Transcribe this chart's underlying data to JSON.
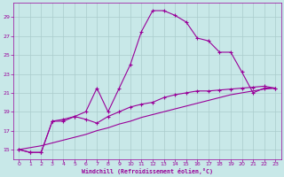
{
  "xlabel": "Windchill (Refroidissement éolien,°C)",
  "background_color": "#c8e8e8",
  "grid_color": "#aacccc",
  "line_color": "#990099",
  "xlim": [
    -0.5,
    23.5
  ],
  "ylim": [
    14.0,
    30.5
  ],
  "yticks": [
    15,
    17,
    19,
    21,
    23,
    25,
    27,
    29
  ],
  "xticks": [
    0,
    1,
    2,
    3,
    4,
    5,
    6,
    7,
    8,
    9,
    10,
    11,
    12,
    13,
    14,
    15,
    16,
    17,
    18,
    19,
    20,
    21,
    22,
    23
  ],
  "series1_x": [
    0,
    1,
    2,
    3,
    4,
    5,
    6,
    7,
    8,
    9,
    10,
    11,
    12,
    13,
    14,
    15,
    16,
    17,
    18,
    19,
    20,
    21,
    22,
    23
  ],
  "series1_y": [
    15.0,
    14.7,
    14.7,
    18.0,
    18.0,
    18.5,
    19.0,
    21.5,
    19.0,
    21.5,
    24.0,
    27.5,
    29.7,
    29.7,
    29.2,
    28.5,
    26.8,
    26.5,
    25.3,
    25.3,
    23.2,
    21.0,
    21.5,
    21.5
  ],
  "series2_x": [
    0,
    1,
    2,
    3,
    4,
    5,
    6,
    7,
    8,
    9,
    10,
    11,
    12,
    13,
    14,
    15,
    16,
    17,
    18,
    19,
    20,
    21,
    22,
    23
  ],
  "series2_y": [
    15.0,
    14.7,
    14.7,
    18.0,
    18.2,
    18.5,
    18.2,
    17.8,
    18.5,
    19.0,
    19.5,
    19.8,
    20.0,
    20.5,
    20.8,
    21.0,
    21.2,
    21.2,
    21.3,
    21.4,
    21.5,
    21.6,
    21.7,
    21.5
  ],
  "series3_x": [
    0,
    1,
    2,
    3,
    4,
    5,
    6,
    7,
    8,
    9,
    10,
    11,
    12,
    13,
    14,
    15,
    16,
    17,
    18,
    19,
    20,
    21,
    22,
    23
  ],
  "series3_y": [
    15.0,
    15.2,
    15.4,
    15.7,
    16.0,
    16.3,
    16.6,
    17.0,
    17.3,
    17.7,
    18.0,
    18.4,
    18.7,
    19.0,
    19.3,
    19.6,
    19.9,
    20.2,
    20.5,
    20.8,
    21.0,
    21.2,
    21.4,
    21.5
  ]
}
